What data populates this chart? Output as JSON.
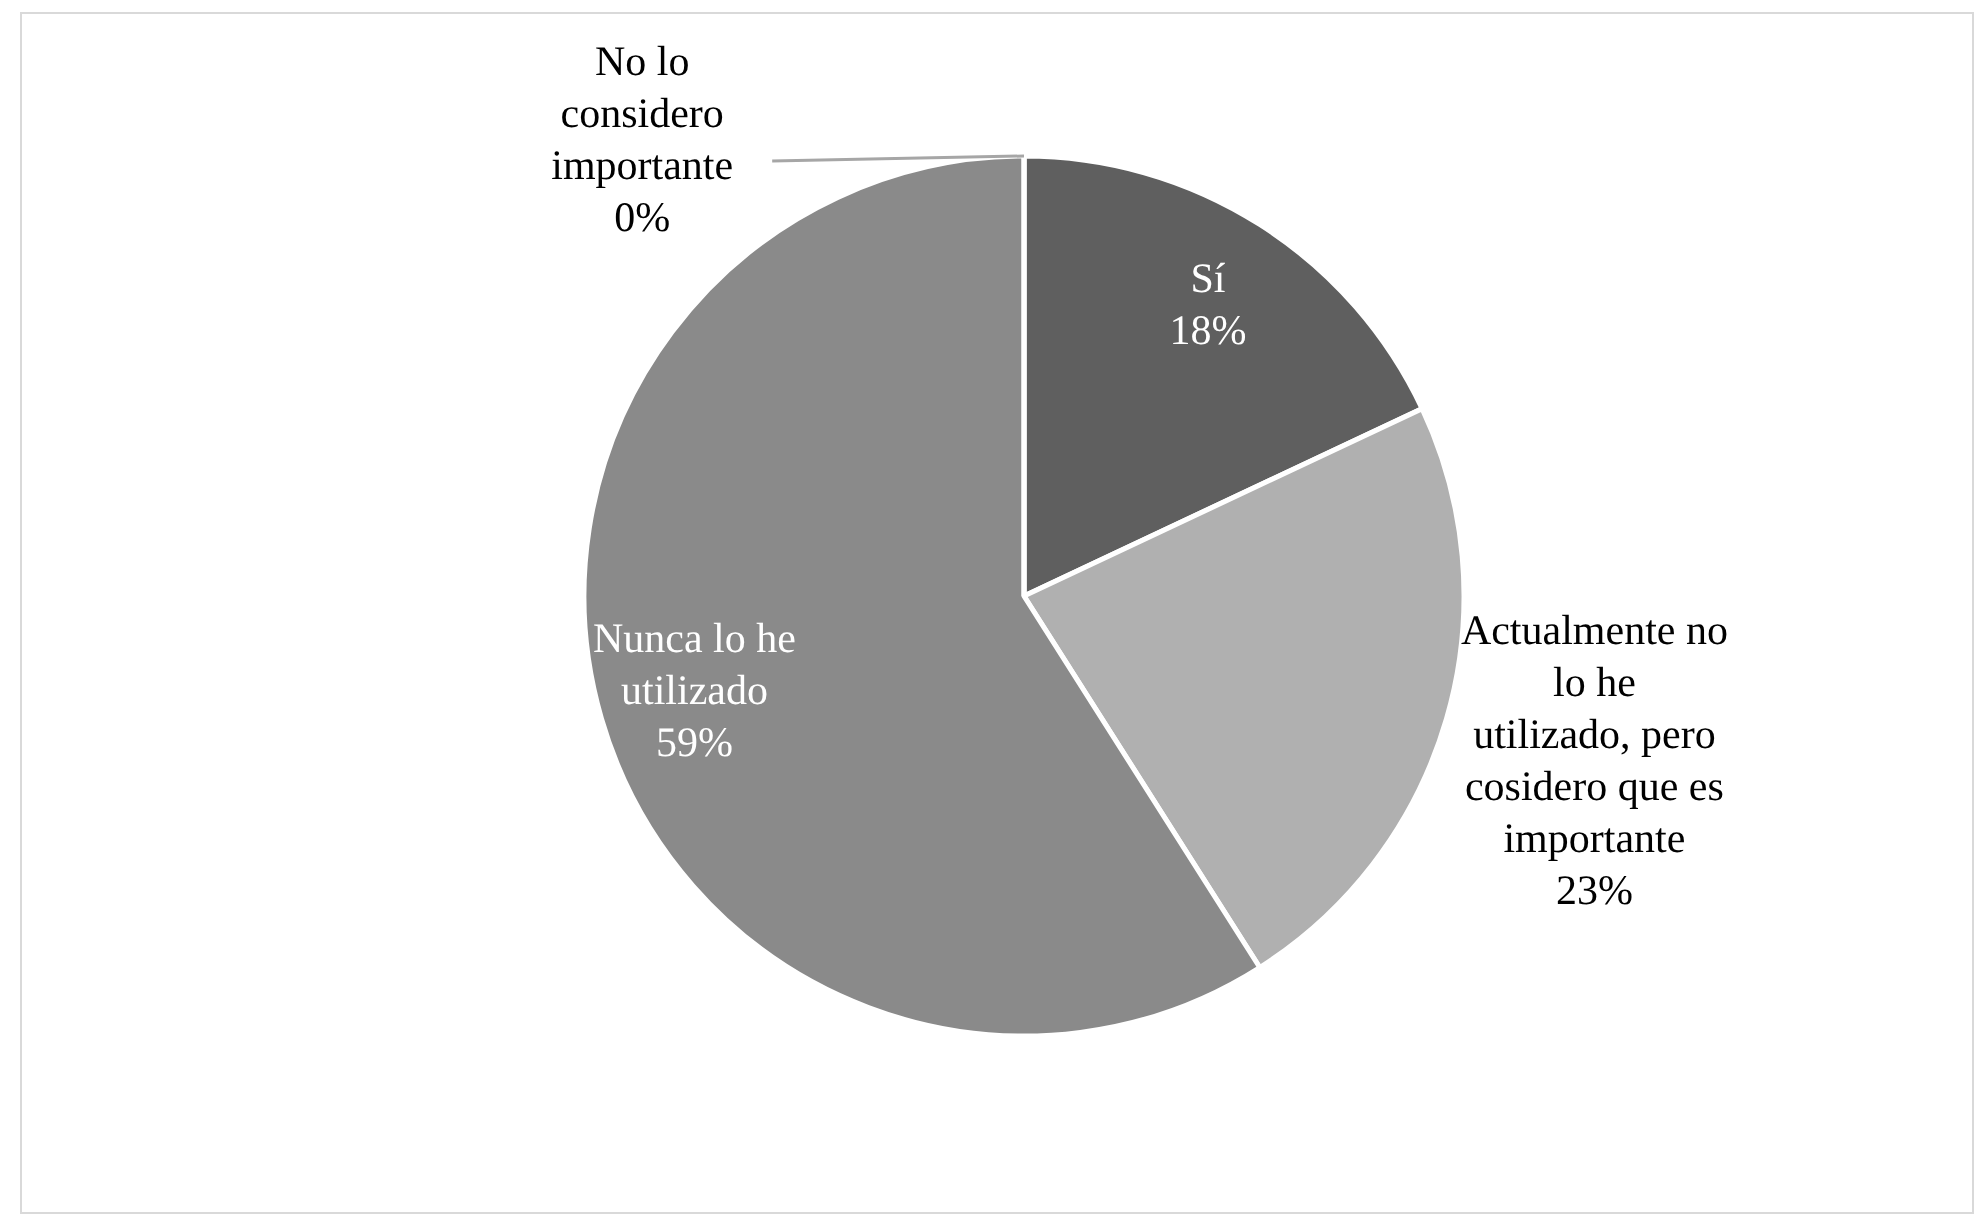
{
  "chart_data": {
    "type": "pie",
    "categories": [
      "Sí",
      "Actualmente no lo he utilizado, pero cosidero que es importante",
      "Nunca lo he utilizado",
      "No lo considero importante"
    ],
    "values": [
      18,
      23,
      59,
      0
    ],
    "value_labels": [
      "18%",
      "23%",
      "59%",
      "0%"
    ],
    "colors": [
      "#5f5f5f",
      "#b0b0b0",
      "#8a8a8a",
      "#d0d0d0"
    ]
  }
}
